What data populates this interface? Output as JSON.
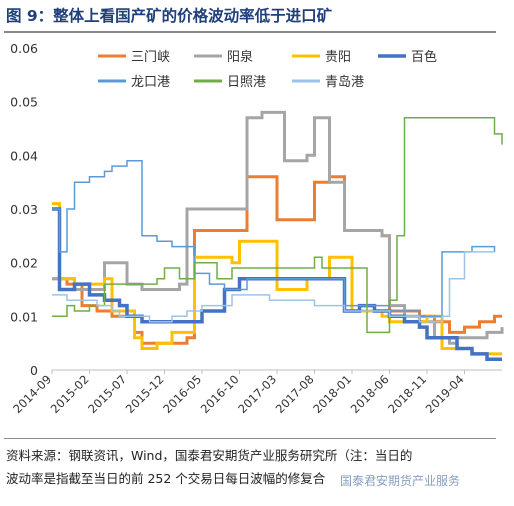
{
  "title": "图 9：整体上看国产矿的价格波动率低于进口矿",
  "source_line1": "资料来源：钢联资讯，Wind，国泰君安期货产业服务研究所（注：当日的",
  "source_line2": "波动率是指截至当日的前 252 个交易日每日波幅的修复合",
  "watermark": "国泰君安期货产业服务",
  "chart_data": {
    "type": "line",
    "title": "",
    "xlabel": "",
    "ylabel": "",
    "ylim": [
      0,
      0.06
    ],
    "yticks": [
      0,
      0.01,
      0.02,
      0.03,
      0.04,
      0.05,
      0.06
    ],
    "ytick_labels": [
      "0",
      "0.01",
      "0.02",
      "0.03",
      "0.04",
      "0.05",
      "0.06"
    ],
    "xlim": [
      "2014-09",
      "2019-09"
    ],
    "xtick_labels": [
      "2014-09",
      "2015-02",
      "2015-07",
      "2015-12",
      "2016-05",
      "2016-10",
      "2017-03",
      "2017-08",
      "2018-01",
      "2018-06",
      "2018-11",
      "2019-04"
    ],
    "legend_position": "top",
    "grid": false,
    "series": [
      {
        "name": "三门峡",
        "color": "#ed7d31",
        "width": 3,
        "points": [
          [
            "2014-09",
            0.017
          ],
          [
            "2014-11",
            0.016
          ],
          [
            "2015-01",
            0.012
          ],
          [
            "2015-03",
            0.011
          ],
          [
            "2015-05",
            0.01
          ],
          [
            "2015-07",
            0.011
          ],
          [
            "2015-08",
            0.007
          ],
          [
            "2015-09",
            0.005
          ],
          [
            "2015-11",
            0.005
          ],
          [
            "2015-12",
            0.005
          ],
          [
            "2016-01",
            0.005
          ],
          [
            "2016-03",
            0.006
          ],
          [
            "2016-04",
            0.026
          ],
          [
            "2016-06",
            0.026
          ],
          [
            "2016-08",
            0.026
          ],
          [
            "2016-09",
            0.026
          ],
          [
            "2016-10",
            0.026
          ],
          [
            "2016-11",
            0.036
          ],
          [
            "2017-02",
            0.036
          ],
          [
            "2017-03",
            0.028
          ],
          [
            "2017-05",
            0.028
          ],
          [
            "2017-07",
            0.028
          ],
          [
            "2017-08",
            0.035
          ],
          [
            "2017-09",
            0.035
          ],
          [
            "2017-10",
            0.036
          ],
          [
            "2017-12",
            0.026
          ],
          [
            "2018-02",
            0.026
          ],
          [
            "2018-04",
            0.026
          ],
          [
            "2018-05",
            0.025
          ],
          [
            "2018-06",
            0.011
          ],
          [
            "2018-08",
            0.011
          ],
          [
            "2018-10",
            0.01
          ],
          [
            "2018-12",
            0.009
          ],
          [
            "2019-01",
            0.009
          ],
          [
            "2019-02",
            0.007
          ],
          [
            "2019-04",
            0.008
          ],
          [
            "2019-06",
            0.009
          ],
          [
            "2019-08",
            0.01
          ],
          [
            "2019-09",
            0.01
          ]
        ]
      },
      {
        "name": "阳泉",
        "color": "#a5a5a5",
        "width": 3,
        "points": [
          [
            "2014-09",
            0.017
          ],
          [
            "2014-12",
            0.015
          ],
          [
            "2015-03",
            0.015
          ],
          [
            "2015-04",
            0.02
          ],
          [
            "2015-06",
            0.02
          ],
          [
            "2015-07",
            0.016
          ],
          [
            "2015-09",
            0.015
          ],
          [
            "2015-11",
            0.015
          ],
          [
            "2016-01",
            0.015
          ],
          [
            "2016-02",
            0.016
          ],
          [
            "2016-03",
            0.03
          ],
          [
            "2016-05",
            0.03
          ],
          [
            "2016-07",
            0.03
          ],
          [
            "2016-09",
            0.03
          ],
          [
            "2016-10",
            0.03
          ],
          [
            "2016-11",
            0.047
          ],
          [
            "2017-01",
            0.048
          ],
          [
            "2017-03",
            0.048
          ],
          [
            "2017-04",
            0.039
          ],
          [
            "2017-06",
            0.039
          ],
          [
            "2017-07",
            0.04
          ],
          [
            "2017-08",
            0.047
          ],
          [
            "2017-09",
            0.047
          ],
          [
            "2017-10",
            0.035
          ],
          [
            "2017-12",
            0.026
          ],
          [
            "2018-02",
            0.026
          ],
          [
            "2018-04",
            0.026
          ],
          [
            "2018-05",
            0.025
          ],
          [
            "2018-06",
            0.012
          ],
          [
            "2018-08",
            0.01
          ],
          [
            "2018-10",
            0.009
          ],
          [
            "2018-12",
            0.006
          ],
          [
            "2019-02",
            0.005
          ],
          [
            "2019-03",
            0.006
          ],
          [
            "2019-05",
            0.006
          ],
          [
            "2019-07",
            0.007
          ],
          [
            "2019-09",
            0.008
          ]
        ]
      },
      {
        "name": "贵阳",
        "color": "#ffc000",
        "width": 3,
        "points": [
          [
            "2014-09",
            0.031
          ],
          [
            "2014-10",
            0.017
          ],
          [
            "2014-12",
            0.016
          ],
          [
            "2015-02",
            0.016
          ],
          [
            "2015-04",
            0.017
          ],
          [
            "2015-05",
            0.011
          ],
          [
            "2015-07",
            0.011
          ],
          [
            "2015-08",
            0.006
          ],
          [
            "2015-09",
            0.004
          ],
          [
            "2015-11",
            0.005
          ],
          [
            "2016-01",
            0.007
          ],
          [
            "2016-03",
            0.007
          ],
          [
            "2016-04",
            0.021
          ],
          [
            "2016-06",
            0.021
          ],
          [
            "2016-08",
            0.021
          ],
          [
            "2016-09",
            0.02
          ],
          [
            "2016-10",
            0.024
          ],
          [
            "2016-12",
            0.024
          ],
          [
            "2017-02",
            0.024
          ],
          [
            "2017-03",
            0.015
          ],
          [
            "2017-05",
            0.015
          ],
          [
            "2017-07",
            0.017
          ],
          [
            "2017-09",
            0.017
          ],
          [
            "2017-10",
            0.021
          ],
          [
            "2017-12",
            0.021
          ],
          [
            "2018-01",
            0.011
          ],
          [
            "2018-03",
            0.011
          ],
          [
            "2018-05",
            0.01
          ],
          [
            "2018-06",
            0.009
          ],
          [
            "2018-08",
            0.009
          ],
          [
            "2018-10",
            0.009
          ],
          [
            "2018-11",
            0.01
          ],
          [
            "2018-12",
            0.01
          ],
          [
            "2019-01",
            0.004
          ],
          [
            "2019-03",
            0.004
          ],
          [
            "2019-05",
            0.003
          ],
          [
            "2019-07",
            0.003
          ],
          [
            "2019-09",
            0.003
          ]
        ]
      },
      {
        "name": "百色",
        "color": "#4472c4",
        "width": 3.5,
        "points": [
          [
            "2014-09",
            0.03
          ],
          [
            "2014-10",
            0.015
          ],
          [
            "2014-12",
            0.016
          ],
          [
            "2015-02",
            0.014
          ],
          [
            "2015-04",
            0.013
          ],
          [
            "2015-06",
            0.012
          ],
          [
            "2015-07",
            0.01
          ],
          [
            "2015-09",
            0.009
          ],
          [
            "2015-11",
            0.009
          ],
          [
            "2016-01",
            0.009
          ],
          [
            "2016-02",
            0.009
          ],
          [
            "2016-04",
            0.009
          ],
          [
            "2016-05",
            0.011
          ],
          [
            "2016-07",
            0.011
          ],
          [
            "2016-08",
            0.015
          ],
          [
            "2016-10",
            0.017
          ],
          [
            "2016-12",
            0.017
          ],
          [
            "2017-02",
            0.017
          ],
          [
            "2017-04",
            0.017
          ],
          [
            "2017-06",
            0.017
          ],
          [
            "2017-08",
            0.017
          ],
          [
            "2017-09",
            0.017
          ],
          [
            "2017-11",
            0.017
          ],
          [
            "2017-12",
            0.011
          ],
          [
            "2018-02",
            0.012
          ],
          [
            "2018-04",
            0.011
          ],
          [
            "2018-06",
            0.01
          ],
          [
            "2018-08",
            0.009
          ],
          [
            "2018-10",
            0.008
          ],
          [
            "2018-11",
            0.006
          ],
          [
            "2019-01",
            0.006
          ],
          [
            "2019-03",
            0.004
          ],
          [
            "2019-05",
            0.003
          ],
          [
            "2019-07",
            0.002
          ],
          [
            "2019-09",
            0.002
          ]
        ]
      },
      {
        "name": "龙口港",
        "color": "#5b9bd5",
        "width": 1.5,
        "points": [
          [
            "2014-09",
            0.03
          ],
          [
            "2014-10",
            0.022
          ],
          [
            "2014-11",
            0.03
          ],
          [
            "2014-12",
            0.035
          ],
          [
            "2015-02",
            0.036
          ],
          [
            "2015-04",
            0.037
          ],
          [
            "2015-05",
            0.038
          ],
          [
            "2015-06",
            0.038
          ],
          [
            "2015-07",
            0.039
          ],
          [
            "2015-09",
            0.025
          ],
          [
            "2015-11",
            0.024
          ],
          [
            "2016-01",
            0.023
          ],
          [
            "2016-02",
            0.023
          ],
          [
            "2016-04",
            0.018
          ],
          [
            "2016-06",
            0.016
          ],
          [
            "2016-08",
            0.015
          ],
          [
            "2016-09",
            0.015
          ],
          [
            "2016-11",
            0.017
          ],
          [
            "2017-01",
            0.017
          ],
          [
            "2017-03",
            0.017
          ],
          [
            "2017-05",
            0.017
          ],
          [
            "2017-07",
            0.017
          ],
          [
            "2017-09",
            0.017
          ],
          [
            "2017-11",
            0.017
          ],
          [
            "2017-12",
            0.012
          ],
          [
            "2018-02",
            0.012
          ],
          [
            "2018-04",
            0.012
          ],
          [
            "2018-06",
            0.011
          ],
          [
            "2018-08",
            0.011
          ],
          [
            "2018-10",
            0.01
          ],
          [
            "2018-12",
            0.01
          ],
          [
            "2019-01",
            0.022
          ],
          [
            "2019-03",
            0.022
          ],
          [
            "2019-05",
            0.023
          ],
          [
            "2019-07",
            0.023
          ],
          [
            "2019-08",
            0.022
          ]
        ]
      },
      {
        "name": "日照港",
        "color": "#70ad47",
        "width": 1.5,
        "points": [
          [
            "2014-09",
            0.01
          ],
          [
            "2014-10",
            0.01
          ],
          [
            "2014-11",
            0.012
          ],
          [
            "2014-12",
            0.011
          ],
          [
            "2015-02",
            0.012
          ],
          [
            "2015-04",
            0.016
          ],
          [
            "2015-06",
            0.016
          ],
          [
            "2015-07",
            0.016
          ],
          [
            "2015-09",
            0.016
          ],
          [
            "2015-11",
            0.017
          ],
          [
            "2015-12",
            0.019
          ],
          [
            "2016-02",
            0.017
          ],
          [
            "2016-04",
            0.02
          ],
          [
            "2016-06",
            0.02
          ],
          [
            "2016-07",
            0.017
          ],
          [
            "2016-09",
            0.019
          ],
          [
            "2016-11",
            0.019
          ],
          [
            "2017-01",
            0.019
          ],
          [
            "2017-03",
            0.019
          ],
          [
            "2017-05",
            0.019
          ],
          [
            "2017-07",
            0.019
          ],
          [
            "2017-08",
            0.021
          ],
          [
            "2017-09",
            0.019
          ],
          [
            "2017-10",
            0.019
          ],
          [
            "2017-12",
            0.019
          ],
          [
            "2018-02",
            0.019
          ],
          [
            "2018-03",
            0.007
          ],
          [
            "2018-05",
            0.007
          ],
          [
            "2018-06",
            0.013
          ],
          [
            "2018-07",
            0.025
          ],
          [
            "2018-08",
            0.047
          ],
          [
            "2018-10",
            0.047
          ],
          [
            "2018-12",
            0.047
          ],
          [
            "2019-02",
            0.047
          ],
          [
            "2019-04",
            0.047
          ],
          [
            "2019-06",
            0.047
          ],
          [
            "2019-08",
            0.047
          ],
          [
            "2019-08",
            0.044
          ],
          [
            "2019-09",
            0.042
          ]
        ]
      },
      {
        "name": "青岛港",
        "color": "#9dc3e6",
        "width": 1.5,
        "points": [
          [
            "2014-09",
            0.014
          ],
          [
            "2014-11",
            0.013
          ],
          [
            "2015-01",
            0.013
          ],
          [
            "2015-03",
            0.012
          ],
          [
            "2015-05",
            0.011
          ],
          [
            "2015-06",
            0.01
          ],
          [
            "2015-08",
            0.01
          ],
          [
            "2015-10",
            0.009
          ],
          [
            "2015-12",
            0.009
          ],
          [
            "2016-01",
            0.01
          ],
          [
            "2016-03",
            0.011
          ],
          [
            "2016-05",
            0.012
          ],
          [
            "2016-07",
            0.012
          ],
          [
            "2016-09",
            0.014
          ],
          [
            "2016-10",
            0.014
          ],
          [
            "2016-12",
            0.014
          ],
          [
            "2017-02",
            0.013
          ],
          [
            "2017-04",
            0.013
          ],
          [
            "2017-06",
            0.013
          ],
          [
            "2017-08",
            0.012
          ],
          [
            "2017-10",
            0.012
          ],
          [
            "2017-12",
            0.011
          ],
          [
            "2018-02",
            0.011
          ],
          [
            "2018-04",
            0.011
          ],
          [
            "2018-06",
            0.01
          ],
          [
            "2018-08",
            0.01
          ],
          [
            "2018-10",
            0.009
          ],
          [
            "2018-12",
            0.009
          ],
          [
            "2019-01",
            0.01
          ],
          [
            "2019-02",
            0.017
          ],
          [
            "2019-04",
            0.022
          ],
          [
            "2019-06",
            0.022
          ],
          [
            "2019-08",
            0.022
          ]
        ]
      }
    ]
  }
}
